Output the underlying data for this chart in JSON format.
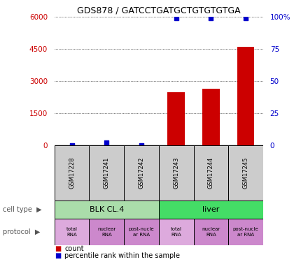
{
  "title": "GDS878 / GATCCTGATGCTGTGTGTGA",
  "samples": [
    "GSM17228",
    "GSM17241",
    "GSM17242",
    "GSM17243",
    "GSM17244",
    "GSM17245"
  ],
  "counts": [
    0,
    0,
    0,
    2500,
    2650,
    4600
  ],
  "percentiles": [
    0,
    2,
    0,
    99,
    99,
    99
  ],
  "ylim_left": [
    0,
    6000
  ],
  "ylim_right": [
    0,
    100
  ],
  "yticks_left": [
    0,
    1500,
    3000,
    4500,
    6000
  ],
  "yticks_right": [
    0,
    25,
    50,
    75,
    100
  ],
  "ytick_labels_left": [
    "0",
    "1500",
    "3000",
    "4500",
    "6000"
  ],
  "ytick_labels_right": [
    "0",
    "25",
    "50",
    "75",
    "100%"
  ],
  "bar_color": "#cc0000",
  "dot_color": "#0000cc",
  "cell_types": [
    {
      "label": "BLK CL.4",
      "start": 0,
      "end": 3
    },
    {
      "label": "liver",
      "start": 3,
      "end": 6
    }
  ],
  "cell_type_colors": [
    "#aaddaa",
    "#44dd66"
  ],
  "protocols": [
    "total\nRNA",
    "nuclear\nRNA",
    "post-nucle\nar RNA",
    "total\nRNA",
    "nuclear\nRNA",
    "post-nucle\nar RNA"
  ],
  "protocol_colors": [
    "#ddaadd",
    "#cc88cc",
    "#cc88cc",
    "#ddaadd",
    "#cc88cc",
    "#cc88cc"
  ],
  "legend_count_color": "#cc0000",
  "legend_pct_color": "#0000cc",
  "sample_bg": "#cccccc"
}
